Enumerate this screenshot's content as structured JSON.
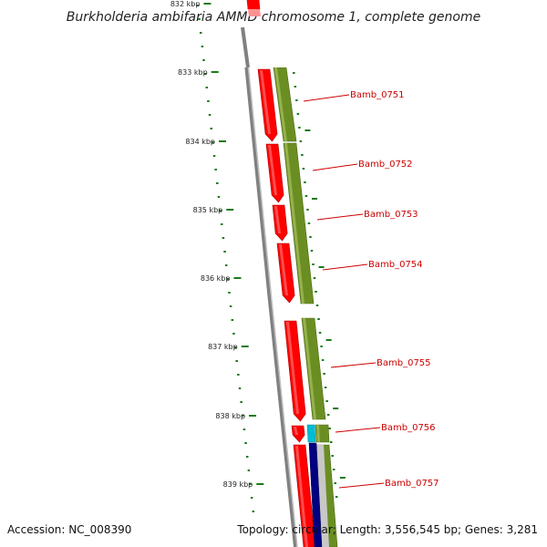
{
  "title": "Burkholderia ambifaria AMMD chromosome 1, complete genome",
  "footer": {
    "accession": "Accession: NC_008390",
    "topology": "Topology: circular; Length: 3,556,545 bp; Genes: 3,281"
  },
  "colors": {
    "cds_forward": "#ff0000",
    "gene_track": "#6b8e23",
    "backbone": "#808080",
    "tick": "#1a7a1a",
    "label": "#cc0000",
    "teal": "#00bcd4",
    "navy": "#000080"
  },
  "kbp_ticks": [
    "832 kbp",
    "833 kbp",
    "834 kbp",
    "835 kbp",
    "836 kbp",
    "837 kbp",
    "838 kbp",
    "839 kbp"
  ],
  "genes": [
    "Bamb_0751",
    "Bamb_0752",
    "Bamb_0753",
    "Bamb_0754",
    "Bamb_0755",
    "Bamb_0756",
    "Bamb_0757"
  ]
}
